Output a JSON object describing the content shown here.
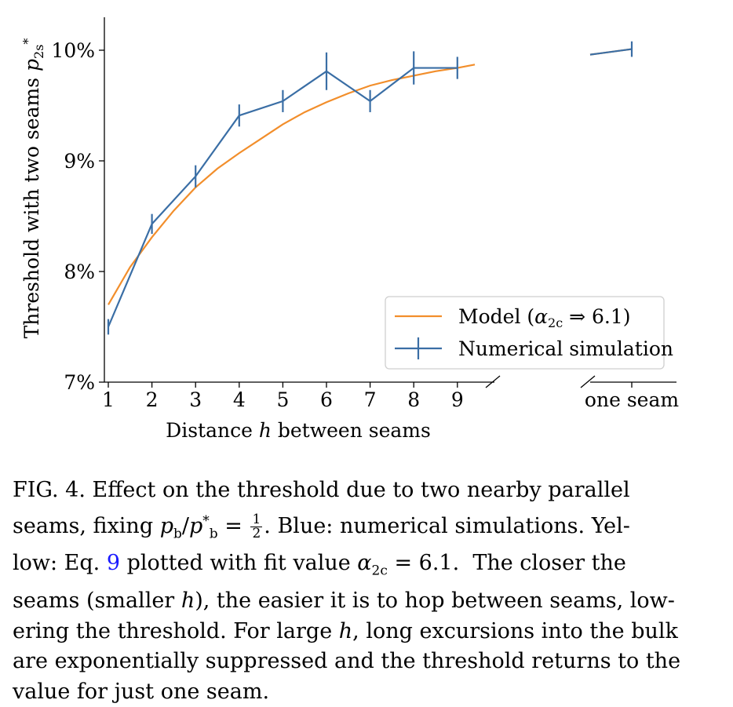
{
  "chart_data": {
    "type": "line",
    "xlabel": "Distance h between seams",
    "ylabel": "Threshold with two seams p*2s",
    "x_ticks": [
      "1",
      "2",
      "3",
      "4",
      "5",
      "6",
      "7",
      "8",
      "9"
    ],
    "x_extra_tick": "one seam",
    "y_ticks": [
      "7%",
      "8%",
      "9%",
      "10%"
    ],
    "ylim": [
      7.0,
      10.3
    ],
    "legend_position": "lower-right",
    "series": [
      {
        "name": "Model (α2c ⇒ 6.1)",
        "color": "#f28e2b",
        "x": [
          1,
          1.5,
          2,
          2.5,
          3,
          3.5,
          4,
          4.5,
          5,
          5.5,
          6,
          6.5,
          7,
          7.5,
          8,
          8.5,
          9,
          9.4
        ],
        "y": [
          7.7,
          8.04,
          8.31,
          8.55,
          8.76,
          8.93,
          9.07,
          9.2,
          9.33,
          9.44,
          9.53,
          9.61,
          9.68,
          9.73,
          9.77,
          9.81,
          9.84,
          9.87
        ],
        "one_seam_segment": [
          9.96,
          10.01
        ]
      },
      {
        "name": "Numerical simulation",
        "color": "#3a6ea5",
        "x": [
          1,
          2,
          3,
          4,
          5,
          6,
          7,
          8,
          9
        ],
        "y": [
          7.5,
          8.43,
          8.86,
          9.41,
          9.54,
          9.81,
          9.54,
          9.84,
          9.84
        ],
        "err": [
          0.07,
          0.09,
          0.1,
          0.1,
          0.1,
          0.17,
          0.1,
          0.15,
          0.1
        ],
        "one_seam_value": 10.01,
        "one_seam_err": 0.07
      }
    ]
  },
  "caption": {
    "line1": "FIG. 4.   Effect on the threshold due to two nearby parallel",
    "line2_a": "seams, fixing ",
    "line2_math": "p_b / p_b* = ",
    "frac_num": "1",
    "frac_den": "2",
    "line2_b": ".  Blue: numerical simulations.  Yel-",
    "line3_a": "low:  Eq. ",
    "eq_ref": "9",
    "line3_b": " plotted with fit value α2c = 6.1.  The closer the",
    "line4": "seams (smaller h), the easier it is to hop between seams, low-",
    "line5": "ering the threshold. For large h, long excursions into the bulk",
    "line6": "are exponentially suppressed and the threshold returns to the",
    "line7": "value for just one seam."
  }
}
